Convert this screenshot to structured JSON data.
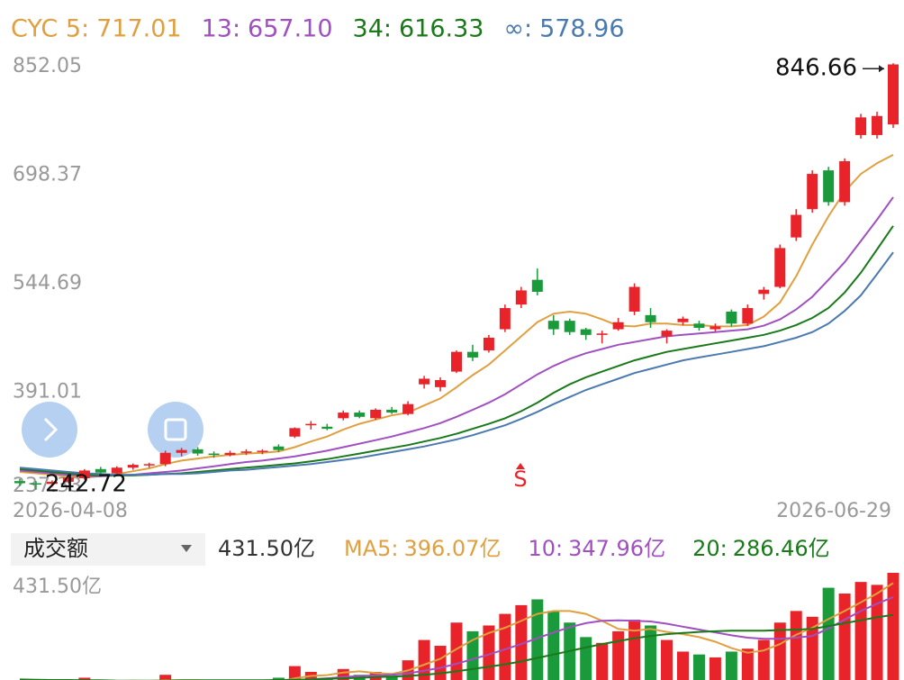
{
  "chart_data": [
    {
      "type": "candlestick",
      "categories": [
        "2026-04-08",
        null,
        null,
        null,
        null,
        null,
        null,
        null,
        null,
        null,
        null,
        null,
        null,
        null,
        null,
        null,
        null,
        null,
        null,
        null,
        null,
        null,
        null,
        null,
        null,
        null,
        null,
        null,
        null,
        null,
        null,
        null,
        null,
        null,
        null,
        null,
        null,
        null,
        null,
        null,
        null,
        null,
        null,
        null,
        null,
        null,
        null,
        null,
        null,
        null,
        null,
        null,
        null,
        null,
        "2026-06-29"
      ],
      "open": [
        255,
        252,
        251,
        254,
        259,
        272,
        266,
        274,
        278,
        279,
        295,
        300,
        294,
        292,
        295,
        297,
        304,
        318,
        334,
        332,
        344,
        352,
        344,
        356,
        350,
        392,
        388,
        410,
        438,
        440,
        470,
        505,
        540,
        482,
        482,
        470,
        462,
        470,
        495,
        490,
        460,
        480,
        478,
        470,
        495,
        478,
        520,
        530,
        600,
        640,
        695,
        650,
        745,
        745,
        760
      ],
      "high": [
        258,
        255,
        256,
        262,
        272,
        275,
        276,
        280,
        281,
        298,
        302,
        303,
        297,
        298,
        300,
        300,
        307,
        331,
        340,
        336,
        355,
        355,
        358,
        360,
        368,
        404,
        402,
        440,
        448,
        462,
        505,
        530,
        556,
        490,
        485,
        472,
        468,
        486,
        535,
        500,
        470,
        488,
        482,
        478,
        498,
        505,
        530,
        590,
        640,
        695,
        700,
        712,
        775,
        778,
        846.66
      ],
      "low": [
        248,
        242.72,
        247,
        252,
        257,
        265,
        264,
        271,
        274,
        276,
        290,
        291,
        288,
        290,
        292,
        293,
        296,
        316,
        328,
        327,
        341,
        344,
        342,
        350,
        348,
        386,
        382,
        408,
        425,
        437,
        466,
        500,
        518,
        462,
        462,
        455,
        450,
        468,
        490,
        472,
        450,
        476,
        468,
        467,
        474,
        475,
        512,
        528,
        595,
        635,
        645,
        645,
        740,
        740,
        755
      ],
      "close": [
        252,
        251,
        254,
        260,
        270,
        267,
        274,
        278,
        279,
        295,
        299,
        294,
        292,
        295,
        297,
        298,
        299,
        330,
        336,
        329,
        352,
        346,
        356,
        352,
        364,
        400,
        398,
        438,
        430,
        458,
        500,
        525,
        523,
        470,
        466,
        462,
        464,
        480,
        530,
        480,
        468,
        485,
        472,
        474,
        478,
        500,
        526,
        585,
        632,
        690,
        650,
        708,
        770,
        772,
        845
      ],
      "up_color": "#e8242a",
      "down_color": "#1a9a3a",
      "series": [
        {
          "name": "CYC 5:",
          "last_label": "717.01",
          "color": "#e0a040",
          "values": [
            268,
            266,
            264,
            262,
            260,
            262,
            265,
            269,
            273,
            279,
            284,
            287,
            290,
            292,
            294,
            295,
            297,
            303,
            311,
            318,
            328,
            336,
            342,
            348,
            352,
            362,
            372,
            388,
            405,
            420,
            440,
            460,
            480,
            492,
            495,
            492,
            484,
            475,
            474,
            478,
            478,
            476,
            476,
            474,
            474,
            476,
            488,
            508,
            545,
            590,
            630,
            665,
            690,
            705,
            717.01
          ]
        },
        {
          "name": "13:",
          "last_label": "657.10",
          "color": "#a050c0",
          "values": [
            270,
            268,
            266,
            264,
            262,
            262,
            263,
            264,
            266,
            268,
            270,
            273,
            276,
            279,
            282,
            284,
            287,
            290,
            294,
            298,
            303,
            308,
            313,
            318,
            324,
            330,
            337,
            346,
            356,
            366,
            378,
            392,
            406,
            418,
            428,
            436,
            442,
            448,
            452,
            456,
            460,
            462,
            464,
            466,
            468,
            470,
            475,
            484,
            498,
            516,
            540,
            565,
            595,
            625,
            657.1
          ]
        },
        {
          "name": "34:",
          "last_label": "616.33",
          "color": "#1a7a1a",
          "values": [
            272,
            270,
            268,
            266,
            264,
            263,
            263,
            263,
            264,
            265,
            266,
            268,
            270,
            272,
            274,
            276,
            278,
            280,
            283,
            286,
            290,
            294,
            298,
            302,
            306,
            311,
            316,
            322,
            329,
            336,
            344,
            354,
            366,
            380,
            392,
            402,
            410,
            418,
            426,
            432,
            438,
            442,
            446,
            450,
            454,
            458,
            462,
            468,
            476,
            486,
            500,
            522,
            550,
            583,
            616.33
          ]
        },
        {
          "name": "∞:",
          "last_label": "578.96",
          "color": "#4a7ab0",
          "values": [
            274,
            272,
            270,
            268,
            266,
            265,
            264,
            264,
            264,
            265,
            265,
            266,
            268,
            270,
            271,
            273,
            275,
            277,
            279,
            282,
            285,
            288,
            292,
            296,
            300,
            304,
            309,
            314,
            320,
            327,
            334,
            343,
            353,
            364,
            374,
            384,
            392,
            400,
            408,
            414,
            420,
            426,
            430,
            434,
            438,
            442,
            446,
            452,
            458,
            466,
            478,
            496,
            518,
            548,
            578.96
          ]
        }
      ],
      "ylim": [
        237.33,
        852.05
      ],
      "yticks": [
        852.05,
        698.37,
        544.69,
        391.01,
        237.33
      ],
      "grid": false,
      "max": 846.66,
      "min": 242.72,
      "annotations": [
        "S"
      ]
    },
    {
      "type": "bar",
      "title": "成交额",
      "last_label": "431.50亿",
      "values": [
        60,
        55,
        50,
        55,
        70,
        60,
        55,
        60,
        50,
        80,
        60,
        55,
        50,
        50,
        55,
        55,
        70,
        110,
        90,
        70,
        100,
        80,
        90,
        75,
        130,
        200,
        180,
        260,
        230,
        250,
        290,
        320,
        340,
        300,
        260,
        210,
        190,
        230,
        270,
        250,
        200,
        160,
        150,
        140,
        160,
        170,
        200,
        260,
        300,
        280,
        380,
        360,
        400,
        390,
        431.5
      ],
      "series": [
        {
          "name": "MA5:",
          "last_label": "396.07亿",
          "color": "#e0a040",
          "values": [
            60,
            58,
            56,
            55,
            58,
            58,
            58,
            60,
            59,
            61,
            61,
            61,
            59,
            59,
            54,
            53,
            56,
            68,
            76,
            79,
            88,
            92,
            86,
            83,
            95,
            115,
            135,
            169,
            200,
            224,
            242,
            266,
            290,
            300,
            300,
            290,
            266,
            238,
            232,
            238,
            228,
            220,
            210,
            194,
            172,
            156,
            164,
            186,
            218,
            242,
            272,
            300,
            330,
            360,
            396.07
          ]
        },
        {
          "name": "10:",
          "last_label": "347.96亿",
          "color": "#a050c0",
          "values": [
            62,
            61,
            60,
            59,
            59,
            58,
            58,
            58,
            58,
            59,
            60,
            60,
            59,
            58,
            58,
            57,
            58,
            62,
            65,
            68,
            72,
            76,
            78,
            80,
            85,
            94,
            104,
            118,
            134,
            150,
            168,
            186,
            206,
            226,
            244,
            258,
            266,
            268,
            266,
            264,
            256,
            246,
            236,
            226,
            216,
            208,
            204,
            204,
            208,
            214,
            240,
            270,
            300,
            325,
            347.96
          ]
        },
        {
          "name": "20:",
          "last_label": "286.46亿",
          "color": "#1a7a1a",
          "values": [
            64,
            63,
            62,
            62,
            61,
            61,
            60,
            60,
            60,
            60,
            61,
            61,
            61,
            61,
            61,
            61,
            62,
            63,
            64,
            66,
            68,
            70,
            72,
            74,
            76,
            80,
            85,
            92,
            100,
            108,
            116,
            126,
            138,
            150,
            162,
            174,
            186,
            196,
            206,
            214,
            220,
            224,
            228,
            230,
            232,
            232,
            232,
            234,
            236,
            238,
            248,
            258,
            268,
            278,
            286.46
          ]
        }
      ],
      "ylim": [
        0,
        431.5
      ],
      "yticks": [
        {
          "value": 431.5,
          "label": "431.50亿"
        }
      ]
    }
  ]
}
